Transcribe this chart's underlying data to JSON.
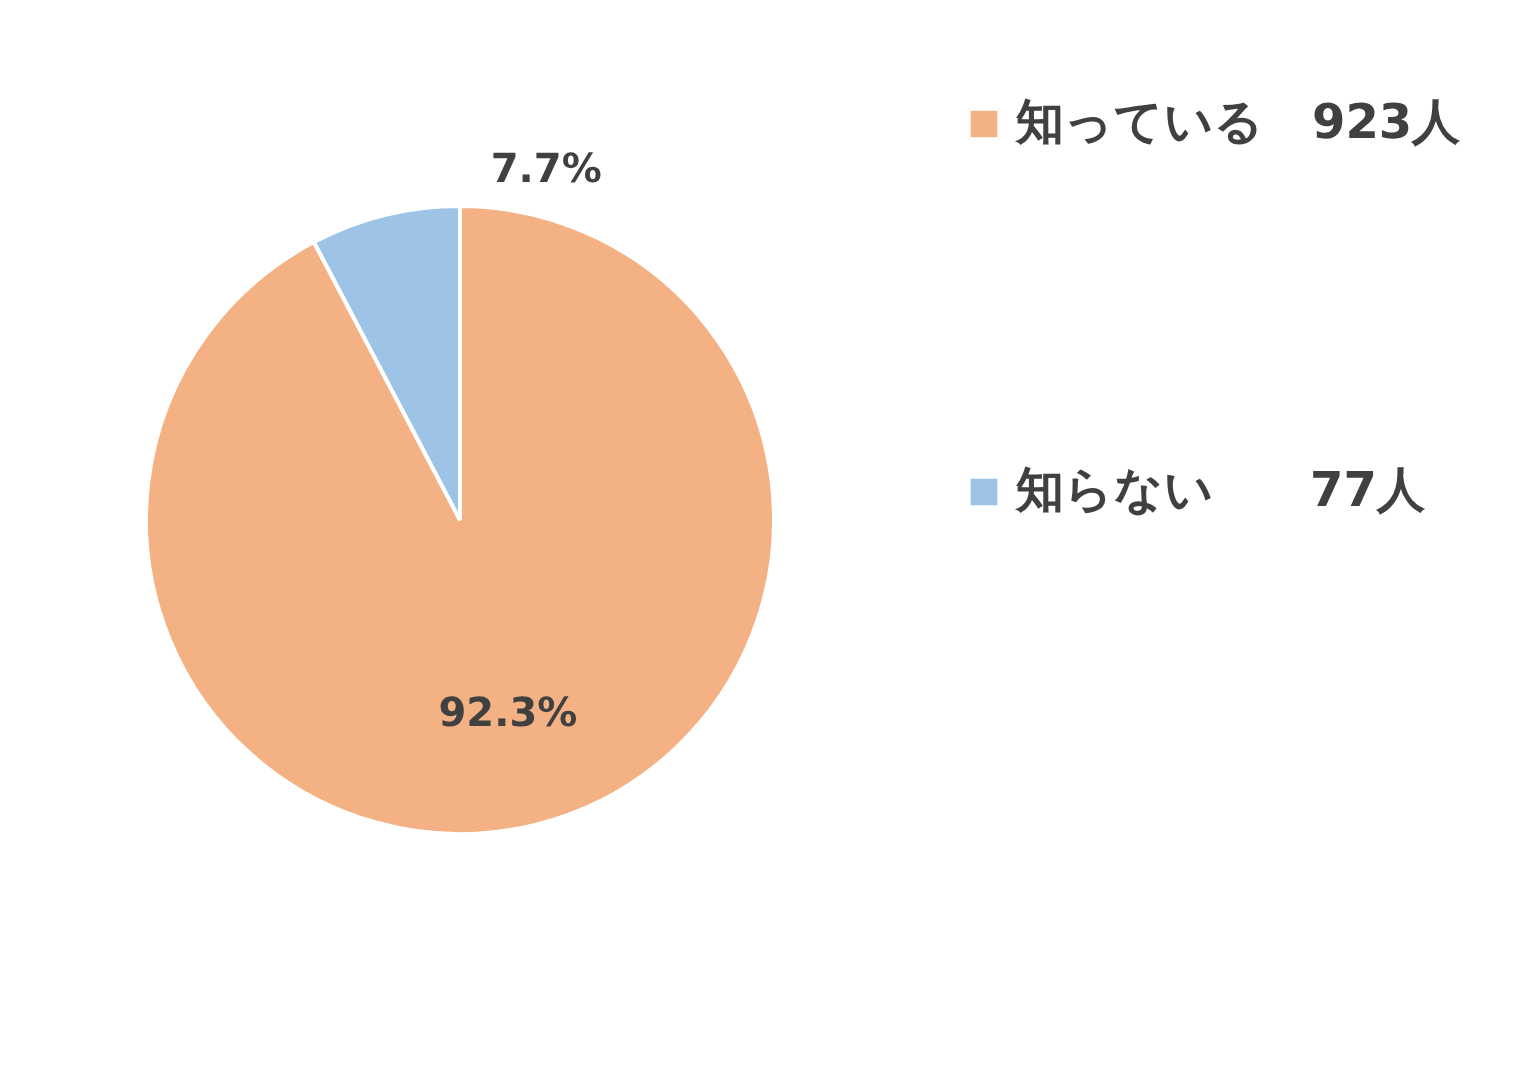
{
  "chart_data": {
    "type": "pie",
    "categories": [
      "知っている　923人",
      "知らない　　77人"
    ],
    "values": [
      92.3,
      7.7
    ],
    "colors": [
      "#f4b183",
      "#9dc3e6"
    ],
    "value_labels": [
      "92.3%",
      "7.7%"
    ],
    "legend": "right"
  }
}
